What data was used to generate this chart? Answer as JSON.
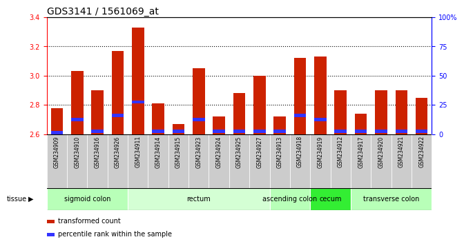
{
  "title": "GDS3141 / 1561069_at",
  "samples": [
    "GSM234909",
    "GSM234910",
    "GSM234916",
    "GSM234926",
    "GSM234911",
    "GSM234914",
    "GSM234915",
    "GSM234923",
    "GSM234924",
    "GSM234925",
    "GSM234927",
    "GSM234913",
    "GSM234918",
    "GSM234919",
    "GSM234912",
    "GSM234917",
    "GSM234920",
    "GSM234921",
    "GSM234922"
  ],
  "red_values": [
    2.78,
    3.03,
    2.9,
    3.17,
    3.33,
    2.81,
    2.67,
    3.05,
    2.72,
    2.88,
    3.0,
    2.72,
    3.12,
    3.13,
    2.9,
    2.74,
    2.9,
    2.9,
    2.85
  ],
  "blue_values": [
    2.61,
    2.7,
    2.62,
    2.73,
    2.82,
    2.62,
    2.62,
    2.7,
    2.62,
    2.62,
    2.62,
    2.62,
    2.73,
    2.7,
    2.62,
    2.62,
    2.62,
    2.62,
    2.62
  ],
  "ymin": 2.6,
  "ymax": 3.4,
  "yticks_left": [
    2.6,
    2.8,
    3.0,
    3.2,
    3.4
  ],
  "yticks_right": [
    0,
    25,
    50,
    75,
    100
  ],
  "ytick_right_labels": [
    "0",
    "25",
    "50",
    "75",
    "100%"
  ],
  "tissue_groups": [
    {
      "label": "sigmoid colon",
      "start": 0,
      "end": 4,
      "color": "#b8ffb8"
    },
    {
      "label": "rectum",
      "start": 4,
      "end": 11,
      "color": "#d4ffd4"
    },
    {
      "label": "ascending colon",
      "start": 11,
      "end": 13,
      "color": "#b8ffb8"
    },
    {
      "label": "cecum",
      "start": 13,
      "end": 15,
      "color": "#33ee33"
    },
    {
      "label": "transverse colon",
      "start": 15,
      "end": 19,
      "color": "#b8ffb8"
    }
  ],
  "bar_color": "#cc2200",
  "blue_color": "#3333ff",
  "bar_width": 0.6,
  "label_bg_color": "#cccccc",
  "label_bg_edge": "#ffffff",
  "plot_bg": "#ffffff",
  "title_fontsize": 10,
  "tick_fontsize": 7,
  "label_fontsize": 5.5,
  "tissue_fontsize": 7,
  "legend_fontsize": 7
}
